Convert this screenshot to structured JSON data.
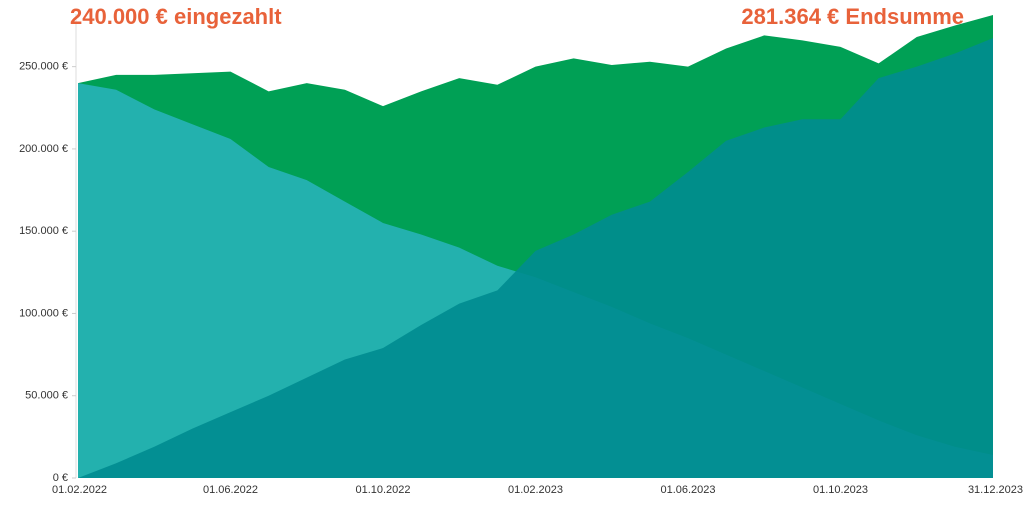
{
  "chart_data": {
    "type": "area",
    "annotations": [
      "240.000 € eingezahlt",
      "281.364 € Endsumme"
    ],
    "categories": [
      "01.02.2022",
      null,
      null,
      null,
      "01.06.2022",
      null,
      null,
      null,
      "01.10.2022",
      null,
      null,
      null,
      "01.02.2023",
      null,
      null,
      null,
      "01.06.2023",
      null,
      null,
      null,
      "01.10.2023",
      null,
      null,
      null,
      "31.12.2023"
    ],
    "series": [
      {
        "color": "#00a055",
        "values": [
          240000,
          245000,
          245000,
          246000,
          247000,
          235000,
          240000,
          236000,
          226000,
          235000,
          243000,
          239000,
          250000,
          255000,
          251000,
          253000,
          250000,
          261000,
          269000,
          266000,
          262000,
          252000,
          268000,
          275000,
          281364
        ]
      },
      {
        "color": "#23b1ae",
        "values": [
          240000,
          236000,
          224000,
          215000,
          206000,
          189000,
          181000,
          168000,
          155000,
          148000,
          140000,
          129000,
          122000,
          113000,
          104000,
          94000,
          85000,
          75000,
          65000,
          55000,
          45000,
          35000,
          26000,
          19000,
          14000
        ]
      },
      {
        "color": "#008c90",
        "values": [
          0,
          9000,
          19000,
          30000,
          40000,
          50000,
          61000,
          72000,
          79000,
          93000,
          106000,
          114000,
          138000,
          148000,
          160000,
          168000,
          186000,
          205000,
          213000,
          218000,
          218000,
          243000,
          250000,
          258000,
          267364
        ]
      }
    ],
    "ylim": [
      0,
      282000
    ],
    "yticks": [
      {
        "value": 0,
        "label": "0 €"
      },
      {
        "value": 50000,
        "label": "50.000 €"
      },
      {
        "value": 100000,
        "label": "100.000 €"
      },
      {
        "value": 150000,
        "label": "150.000 €"
      },
      {
        "value": 200000,
        "label": "200.000 €"
      },
      {
        "value": 250000,
        "label": "250.000 €"
      }
    ],
    "grid": false
  }
}
